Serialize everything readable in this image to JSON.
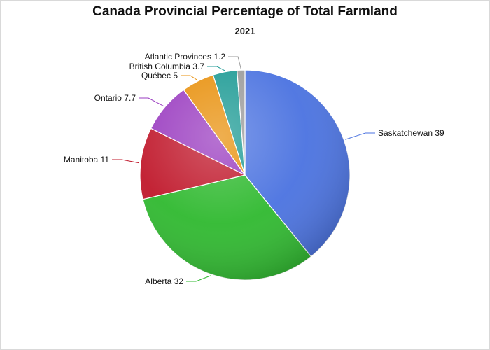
{
  "chart_data": {
    "type": "pie",
    "title": "Canada Provincial Percentage of Total Farmland",
    "subtitle": "2021",
    "start_angle_deg": 0,
    "direction": "clockwise",
    "slices": [
      {
        "label": "Saskatchewan",
        "value": 39,
        "text": "Saskatchewan 39",
        "color": "#4a72e0"
      },
      {
        "label": "Alberta",
        "value": 32,
        "text": "Alberta 32",
        "color": "#2fb92f"
      },
      {
        "label": "Manitoba",
        "value": 11,
        "text": "Manitoba 11",
        "color": "#c0182b"
      },
      {
        "label": "Ontario",
        "value": 7.7,
        "text": "Ontario 7.7",
        "color": "#9a3cc0"
      },
      {
        "label": "Québec",
        "value": 5,
        "text": "Québec 5",
        "color": "#e8900c"
      },
      {
        "label": "British Columbia",
        "value": 3.7,
        "text": "British Columbia 3.7",
        "color": "#1c9a94"
      },
      {
        "label": "Atlantic Provinces",
        "value": 1.2,
        "text": "Atlantic Provinces 1.2",
        "color": "#9a9a9a"
      }
    ]
  }
}
